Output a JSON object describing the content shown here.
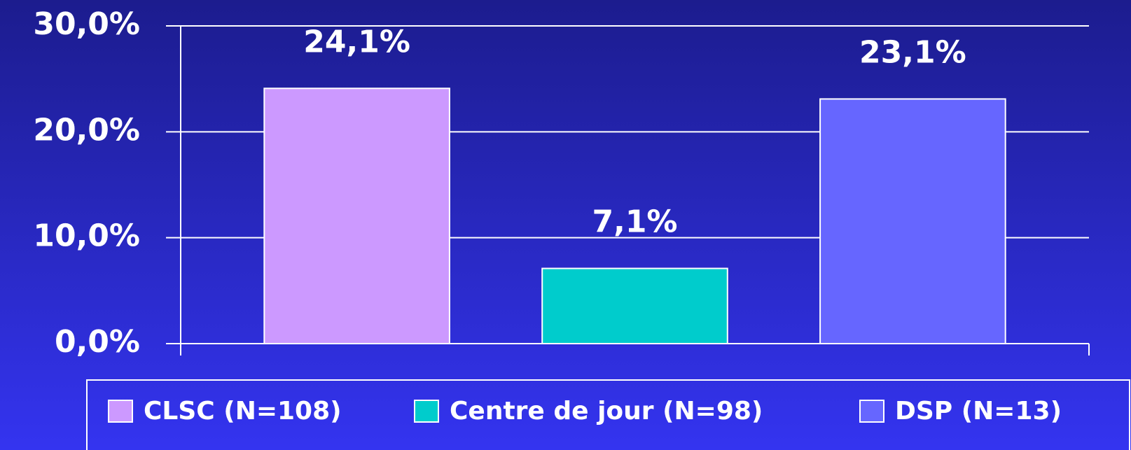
{
  "chart_data": {
    "type": "bar",
    "categories": [
      null
    ],
    "series": [
      {
        "name": "CLSC (N=108)",
        "color": "#cc99ff",
        "values": [
          24.1
        ],
        "value_labels": [
          "24,1%"
        ]
      },
      {
        "name": "Centre de jour (N=98)",
        "color": "#00cccc",
        "values": [
          7.1
        ],
        "value_labels": [
          "7,1%"
        ]
      },
      {
        "name": "DSP (N=13)",
        "color": "#6666ff",
        "values": [
          23.1
        ],
        "value_labels": [
          "23,1%"
        ]
      }
    ],
    "ylim": [
      0,
      30
    ],
    "yticks": [
      {
        "value": 0,
        "label": "0,0%"
      },
      {
        "value": 10,
        "label": "10,0%"
      },
      {
        "value": 20,
        "label": "20,0%"
      },
      {
        "value": 30,
        "label": "30,0%"
      }
    ],
    "grid": true,
    "legend": "bottom"
  }
}
